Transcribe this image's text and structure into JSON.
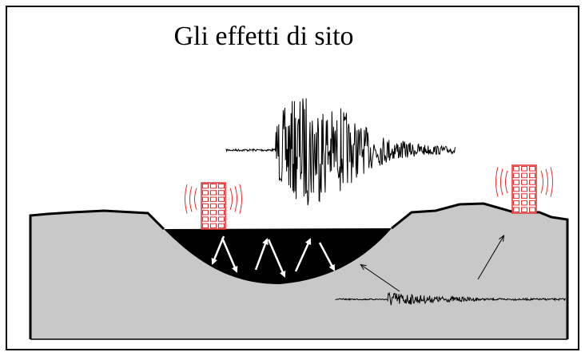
{
  "title": "Gli effetti di sito"
}
